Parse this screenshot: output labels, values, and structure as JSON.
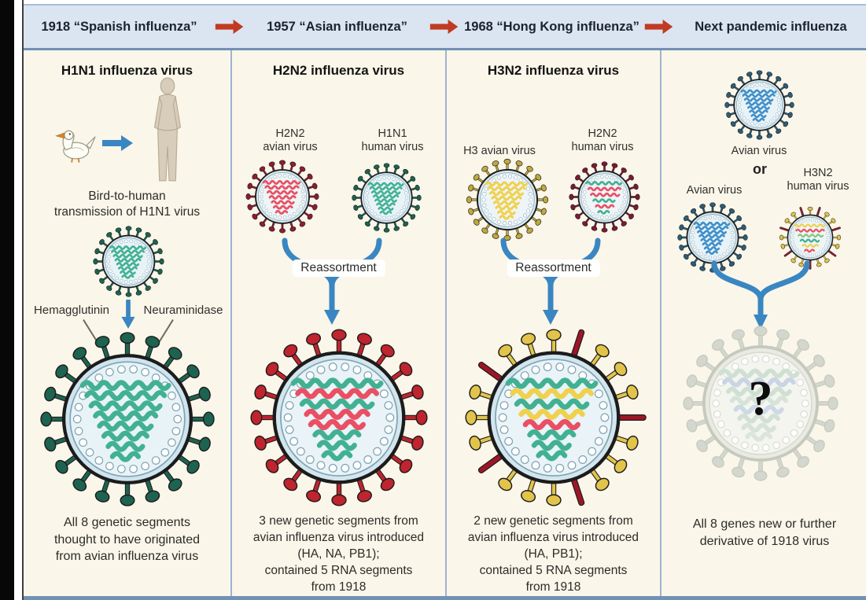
{
  "palette": {
    "black_bar": "#070707",
    "header_bg": "#dbe4f1",
    "header_line": "#7291b5",
    "panel_bg": "#faf6e9",
    "divider": "#9db4d0",
    "red_arrow": "#c13a22",
    "blue_arrow": "#3a86c2",
    "text": "#2e2e2e"
  },
  "header": {
    "items": [
      "1918 “Spanish influenza”",
      "1957 “Asian influenza”",
      "1968 “Hong Kong influenza”",
      "Next pandemic influenza"
    ]
  },
  "columns": [
    {
      "title": "H1N1 influenza virus",
      "caption_lines": [
        "Bird-to-human",
        "transmission of H1N1 virus"
      ],
      "protein_labels": {
        "left": "Hemagglutinin",
        "right": "Neuraminidase"
      },
      "footer_lines": [
        "All 8 genetic segments",
        "thought to have originated",
        "from avian influenza virus"
      ]
    },
    {
      "title": "H2N2 influenza virus",
      "source_viruses": [
        {
          "lines": [
            "H2N2",
            "avian virus"
          ]
        },
        {
          "lines": [
            "H1N1",
            "human virus"
          ]
        }
      ],
      "process": "Reassortment",
      "footer_lines": [
        "3 new genetic segments from",
        "avian influenza virus introduced",
        "(HA, NA, PB1);",
        "contained 5 RNA segments",
        "from 1918"
      ]
    },
    {
      "title": "H3N2 influenza virus",
      "source_viruses": [
        {
          "lines": [
            "H3 avian virus"
          ]
        },
        {
          "lines": [
            "H2N2",
            "human virus"
          ]
        }
      ],
      "process": "Reassortment",
      "footer_lines": [
        "2 new genetic segments from",
        "avian influenza virus introduced",
        "(HA, PB1);",
        "contained 5 RNA segments",
        "from 1918"
      ]
    },
    {
      "top_virus_label": "Avian virus",
      "or_label": "or",
      "source_viruses": [
        {
          "lines": [
            "Avian virus"
          ]
        },
        {
          "lines": [
            "H3N2",
            "human virus"
          ]
        }
      ],
      "question_mark": "?",
      "footer_lines": [
        "All 8 genes new or further",
        "derivative of 1918 virus"
      ]
    }
  ],
  "viruses": {
    "h1n1": {
      "spike": "#1d6350",
      "membrane": "#cfe4ee",
      "inner": "#e8f3f8",
      "segments": [
        "#41b192",
        "#41b192",
        "#41b192",
        "#41b192",
        "#41b192",
        "#41b192",
        "#41b192",
        "#41b192"
      ]
    },
    "h2n2_avian": {
      "spike": "#8e1d33",
      "membrane": "#d9e7ee",
      "inner": "#eef5f7",
      "segments": [
        "#ea4f63",
        "#ea4f63",
        "#ea4f63",
        "#ea4f63",
        "#ea4f63",
        "#ea4f63",
        "#ea4f63"
      ]
    },
    "h2n2_big": {
      "spike": "#c0242e",
      "membrane": "#d3e6ee",
      "inner": "#e9f3f8",
      "segments": [
        "#41b192",
        "#ea4f63",
        "#41b192",
        "#ea4f63",
        "#ea4f63",
        "#41b192",
        "#41b192",
        "#41b192"
      ]
    },
    "h3_avian": {
      "spike": "#bfa93e",
      "membrane": "#d9e7ee",
      "inner": "#edf5f8",
      "segments": [
        "#f0d14e",
        "#f0d14e",
        "#f0d14e",
        "#f0d14e",
        "#f0d14e",
        "#f0d14e",
        "#f0d14e",
        "#f0d14e"
      ]
    },
    "h2n2_human": {
      "spike": "#7c1a33",
      "membrane": "#d9e7ee",
      "inner": "#eef5f7",
      "segments": [
        "#41b192",
        "#ea4f63",
        "#ea4f63",
        "#41b192",
        "#ea4f63",
        "#41b192"
      ]
    },
    "h3n2_big": {
      "spike": "#e2c44a",
      "alt": "#9e1626",
      "altEvery": 4,
      "membrane": "#d3e6ee",
      "inner": "#e9f3f8",
      "segments": [
        "#41b192",
        "#f0d14e",
        "#41b192",
        "#f0d14e",
        "#ea4f63",
        "#41b192",
        "#41b192",
        "#41b192"
      ]
    },
    "avian_blue": {
      "spike": "#2d5d78",
      "membrane": "#cfe4ee",
      "inner": "#e8f3f8",
      "segments": [
        "#3e8fc9",
        "#3e8fc9",
        "#3e8fc9",
        "#3e8fc9",
        "#3e8fc9",
        "#3e8fc9",
        "#3e8fc9",
        "#3e8fc9"
      ]
    },
    "h3n2_human": {
      "spike": "#e2c44a",
      "alt": "#8e1d33",
      "altEvery": 3,
      "membrane": "#d9e7ee",
      "inner": "#eef5f7",
      "segments": [
        "#f0d14e",
        "#ea4f63",
        "#86c77e",
        "#41b192",
        "#f0d14e",
        "#ea4f63"
      ]
    },
    "ghost": {
      "spike": "#d4d7cd",
      "membrane": "#e9ebe3",
      "inner": "#f4f5ef",
      "stroke": "#c6c9be",
      "ring": "#d6d9cf",
      "segments": [
        "#cfe0d2",
        "#c9d4e4",
        "#cfe0d2",
        "#d7e3d9",
        "#ccd9e6",
        "#d2e0d4",
        "#d7e3d9",
        "#dbe5dc"
      ]
    }
  }
}
